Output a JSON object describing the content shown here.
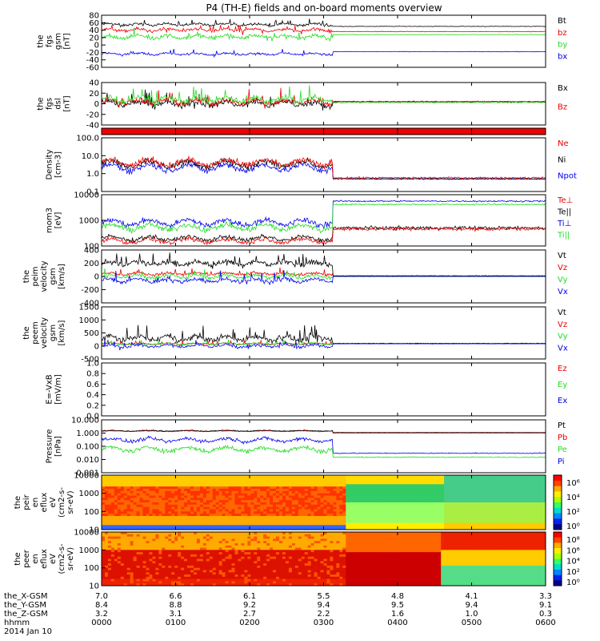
{
  "title": "P4 (TH-E) fields and on-board moments overview",
  "colors": {
    "black": "#000000",
    "red": "#ee0000",
    "green": "#22dd22",
    "blue": "#0000ee"
  },
  "panels": [
    {
      "id": "fgs",
      "ylabel": [
        "the",
        "fgs",
        "gsm",
        "[nT]"
      ],
      "ticks": [
        "80",
        "60",
        "40",
        "20",
        "0",
        "-20",
        "-40",
        "-60"
      ],
      "ylim": [
        -60,
        80
      ],
      "legend": [
        {
          "text": "Bt",
          "color": "black"
        },
        {
          "text": "bz",
          "color": "red"
        },
        {
          "text": "by",
          "color": "green"
        },
        {
          "text": "bx",
          "color": "blue"
        }
      ]
    },
    {
      "id": "fgs_dsl",
      "ylabel": [
        "the",
        "fgs",
        "dsl",
        "[nT]"
      ],
      "ticks": [
        "40",
        "20",
        "0",
        "-20",
        "-40"
      ],
      "ylim": [
        -55,
        45
      ],
      "legend": [
        {
          "text": "Bx",
          "color": "black"
        },
        {
          "text": "Bz",
          "color": "red"
        }
      ]
    },
    {
      "id": "bar",
      "ylabel": [],
      "ticks": [],
      "ylim": [
        0,
        1
      ],
      "legend": []
    },
    {
      "id": "density",
      "ylabel": [
        "Density",
        "[cm-3]"
      ],
      "ticks": [
        "100.0",
        "10.0",
        "1.0",
        "0.1"
      ],
      "ylim": [
        0.1,
        200
      ],
      "log": true,
      "legend": [
        {
          "text": "Ne",
          "color": "red"
        },
        {
          "text": "Ni",
          "color": "black"
        },
        {
          "text": "Npot",
          "color": "blue"
        }
      ]
    },
    {
      "id": "temp",
      "ylabel": [
        "mom3",
        "[eV]"
      ],
      "ticks": [
        "10000",
        "1000",
        "100"
      ],
      "ylim": [
        40,
        10000
      ],
      "log": true,
      "legend": [
        {
          "text": "Te⊥",
          "color": "red"
        },
        {
          "text": "Te||",
          "color": "black"
        },
        {
          "text": "Ti⊥",
          "color": "blue"
        },
        {
          "text": "Ti||",
          "color": "green"
        }
      ]
    },
    {
      "id": "vi",
      "ylabel": [
        "the",
        "peim",
        "velocity",
        "gsm",
        "[km/s]"
      ],
      "ticks": [
        "400",
        "200",
        "0",
        "-200",
        "-400"
      ],
      "ylim": [
        -400,
        400
      ],
      "legend": [
        {
          "text": "Vt",
          "color": "black"
        },
        {
          "text": "Vz",
          "color": "red"
        },
        {
          "text": "Vy",
          "color": "green"
        },
        {
          "text": "Vx",
          "color": "blue"
        }
      ]
    },
    {
      "id": "ve",
      "ylabel": [
        "the",
        "peem",
        "velocity",
        "gsm",
        "[km/s]"
      ],
      "ticks": [
        "1500",
        "1000",
        "500",
        "0",
        "-500"
      ],
      "ylim": [
        -700,
        1700
      ],
      "legend": [
        {
          "text": "Vt",
          "color": "black"
        },
        {
          "text": "Vz",
          "color": "red"
        },
        {
          "text": "Vy",
          "color": "green"
        },
        {
          "text": "Vx",
          "color": "blue"
        }
      ]
    },
    {
      "id": "efield",
      "ylabel": [
        "E=-VxB",
        "[mV/m]"
      ],
      "ticks": [
        "1.0",
        "0.8",
        "0.6",
        "0.4",
        "0.2",
        "0.0"
      ],
      "ylim": [
        0,
        1
      ],
      "legend": [
        {
          "text": "Ez",
          "color": "red"
        },
        {
          "text": "Ey",
          "color": "green"
        },
        {
          "text": "Ex",
          "color": "blue"
        }
      ]
    },
    {
      "id": "pressure",
      "ylabel": [
        "Pressure",
        "[nPa]"
      ],
      "ticks": [
        "10.000",
        "1.000",
        "0.100",
        "0.010",
        "0.001"
      ],
      "ylim": [
        0.001,
        10
      ],
      "log": true,
      "legend": [
        {
          "text": "Pt",
          "color": "black"
        },
        {
          "text": "Pb",
          "color": "red"
        },
        {
          "text": "Pe",
          "color": "green"
        },
        {
          "text": "Pi",
          "color": "blue"
        }
      ]
    },
    {
      "id": "ion_spec",
      "ylabel": [
        "the",
        "peir",
        "en",
        "eflux",
        "eV",
        "(cm2-s-",
        "sr-eV)"
      ],
      "ticks": [
        "10000",
        "1000",
        "100",
        "10"
      ],
      "ylim": [
        5,
        20000
      ],
      "log": true,
      "legend": []
    },
    {
      "id": "el_spec",
      "ylabel": [
        "the",
        "peer",
        "en",
        "eflux",
        "eV",
        "(cm2-s-",
        "sr-eV)"
      ],
      "ticks": [
        "10000",
        "1000",
        "100",
        "10"
      ],
      "ylim": [
        5,
        20000
      ],
      "log": true,
      "legend": []
    }
  ],
  "colorbars": [
    {
      "ticks": [
        "10⁶",
        "10⁴",
        "10²",
        "10⁰"
      ]
    },
    {
      "ticks": [
        "10⁸",
        "10⁶",
        "10⁴",
        "10²",
        "10⁰"
      ]
    }
  ],
  "xaxis": {
    "rows": [
      {
        "label": "the_X-GSM",
        "values": [
          "7.0",
          "6.6",
          "6.1",
          "5.5",
          "4.8",
          "4.1",
          "3.3"
        ]
      },
      {
        "label": "the_Y-GSM",
        "values": [
          "8.4",
          "8.8",
          "9.2",
          "9.4",
          "9.5",
          "9.4",
          "9.1"
        ]
      },
      {
        "label": "the_Z-GSM",
        "values": [
          "3.2",
          "3.1",
          "2.7",
          "2.2",
          "1.6",
          "1.0",
          "0.3"
        ]
      },
      {
        "label": "hhmm",
        "values": [
          "0000",
          "0100",
          "0200",
          "0300",
          "0400",
          "0500",
          "0600"
        ]
      }
    ],
    "date": "2014 Jan 10"
  },
  "chart_data": {
    "type": "line",
    "title": "P4 (TH-E) fields and on-board moments overview",
    "x": [
      "0000",
      "0100",
      "0200",
      "0300",
      "0400",
      "0500",
      "0600"
    ],
    "series": [
      {
        "name": "Bt",
        "values": [
          55,
          58,
          55,
          52,
          50,
          48,
          48
        ]
      },
      {
        "name": "bz",
        "values": [
          40,
          45,
          42,
          40,
          38,
          36,
          35
        ]
      },
      {
        "name": "by",
        "values": [
          25,
          20,
          22,
          20,
          28,
          28,
          27
        ]
      },
      {
        "name": "bx",
        "values": [
          -20,
          -25,
          -25,
          -22,
          -18,
          -18,
          -18
        ]
      },
      {
        "name": "Ne",
        "values": [
          3,
          10,
          8,
          10,
          0.5,
          0.5,
          0.5
        ]
      },
      {
        "name": "Ti⊥",
        "values": [
          400,
          500,
          500,
          500,
          4000,
          4500,
          5000
        ]
      },
      {
        "name": "Pb",
        "values": [
          1.2,
          1.5,
          1.4,
          1.3,
          1.1,
          1.0,
          1.0
        ]
      }
    ]
  }
}
